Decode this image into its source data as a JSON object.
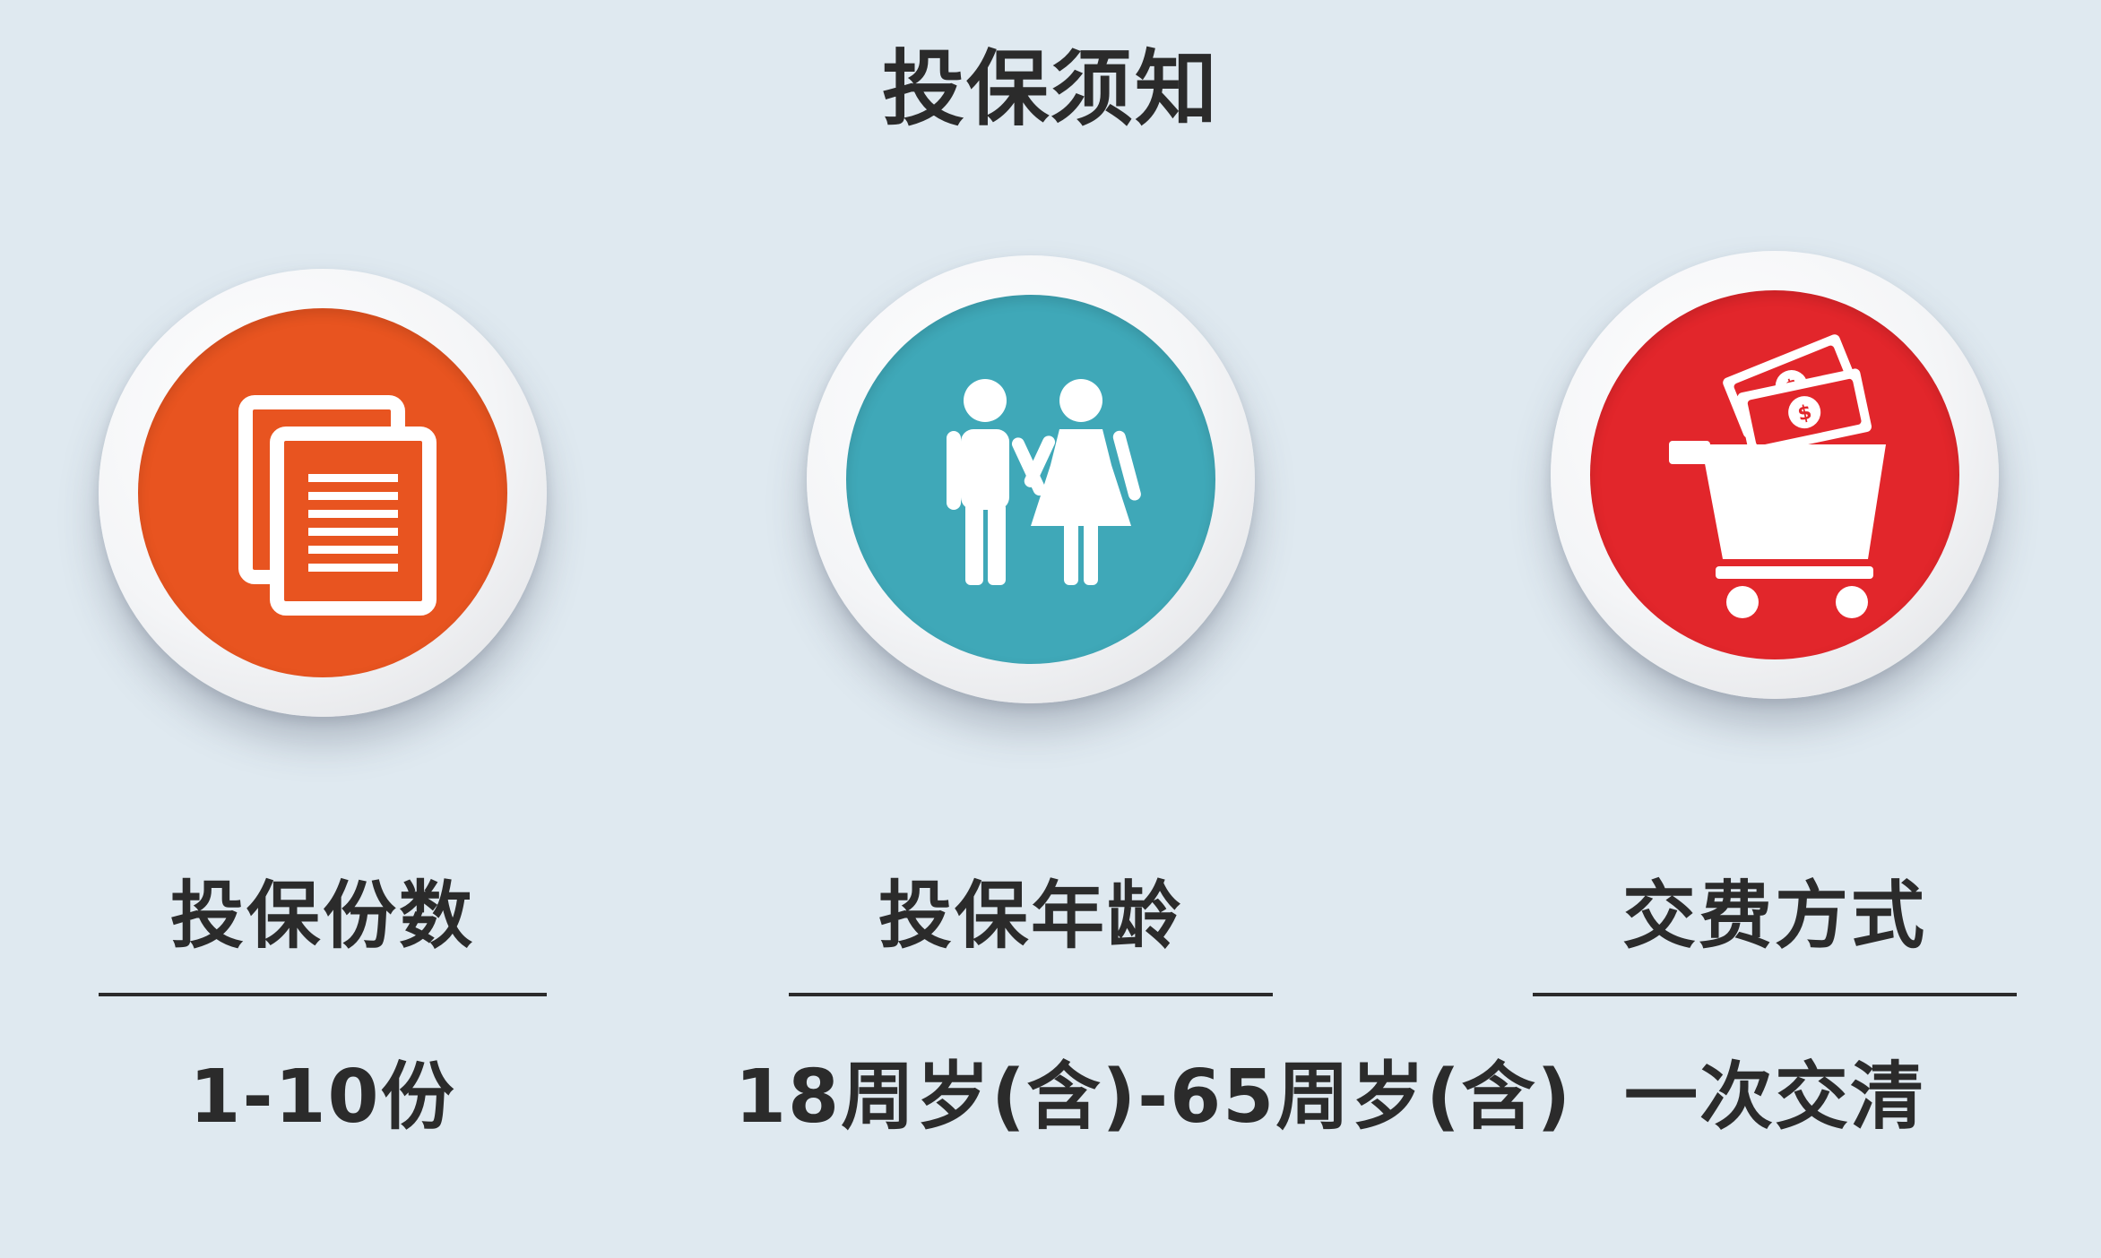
{
  "title": "投保须知",
  "colors": {
    "background": "#dfe9f0",
    "orange": "#e85420",
    "teal": "#3fa8b8",
    "red": "#e2262b",
    "text": "#2b2b2b"
  },
  "cards": [
    {
      "icon": "document-pages-icon",
      "label": "投保份数",
      "value": "1-10份"
    },
    {
      "icon": "couple-icon",
      "label": "投保年龄",
      "value": "18周岁(含)-65周岁(含)"
    },
    {
      "icon": "shopping-cart-money-icon",
      "label": "交费方式",
      "value": "一次交清"
    }
  ]
}
